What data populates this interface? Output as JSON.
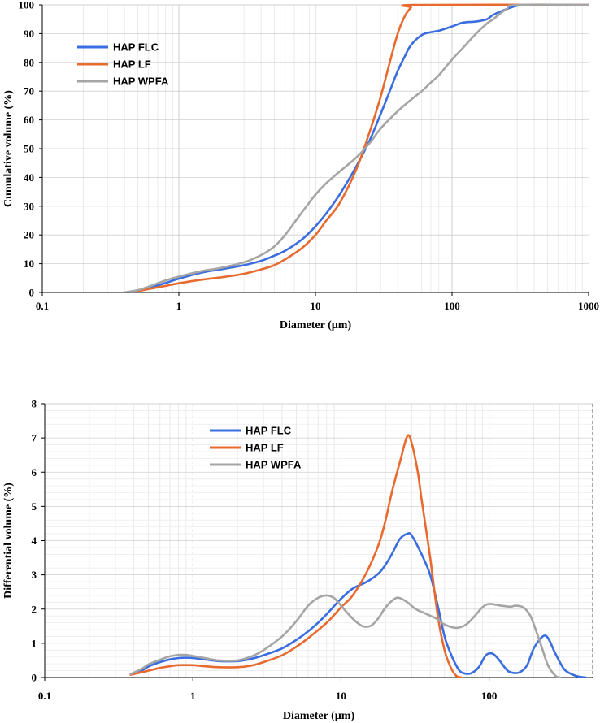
{
  "chart_data": [
    {
      "type": "line",
      "x_scale": "log",
      "xlim": [
        0.1,
        1000
      ],
      "ylim": [
        0,
        100
      ],
      "x_ticks": [
        "0.1",
        "1",
        "10",
        "100",
        "1000"
      ],
      "y_ticks": [
        "0",
        "10",
        "20",
        "30",
        "40",
        "50",
        "60",
        "70",
        "80",
        "90",
        "100"
      ],
      "xlabel": "Diameter (µm)",
      "ylabel": "Cumulative volume (%)",
      "legend_position": "top-left",
      "series": [
        {
          "name": "HAP FLC",
          "color": "#3A6EE0",
          "points": [
            [
              0.4,
              0
            ],
            [
              0.5,
              0.6
            ],
            [
              0.6,
              1.5
            ],
            [
              0.8,
              3.3
            ],
            [
              1,
              4.8
            ],
            [
              1.5,
              7
            ],
            [
              2,
              8
            ],
            [
              3,
              9.5
            ],
            [
              4,
              11
            ],
            [
              5,
              12.8
            ],
            [
              6,
              14.5
            ],
            [
              8,
              18.5
            ],
            [
              10,
              23
            ],
            [
              12,
              27.5
            ],
            [
              15,
              34
            ],
            [
              20,
              44
            ],
            [
              25,
              53
            ],
            [
              30,
              62
            ],
            [
              35,
              70
            ],
            [
              40,
              77
            ],
            [
              45,
              82
            ],
            [
              50,
              86
            ],
            [
              60,
              89.5
            ],
            [
              70,
              90.5
            ],
            [
              80,
              91
            ],
            [
              100,
              92.5
            ],
            [
              120,
              93.8
            ],
            [
              150,
              94.2
            ],
            [
              180,
              95
            ],
            [
              200,
              96.5
            ],
            [
              250,
              98.5
            ],
            [
              300,
              99.7
            ],
            [
              350,
              100
            ],
            [
              1000,
              100
            ]
          ]
        },
        {
          "name": "HAP LF",
          "color": "#E86A2E",
          "points": [
            [
              0.4,
              0
            ],
            [
              0.5,
              0.5
            ],
            [
              0.6,
              1.2
            ],
            [
              0.8,
              2.3
            ],
            [
              1,
              3.2
            ],
            [
              1.5,
              4.5
            ],
            [
              2,
              5.2
            ],
            [
              3,
              6.5
            ],
            [
              4,
              8
            ],
            [
              5,
              9.5
            ],
            [
              6,
              11.5
            ],
            [
              8,
              15.5
            ],
            [
              10,
              20
            ],
            [
              12,
              25
            ],
            [
              15,
              31
            ],
            [
              20,
              43
            ],
            [
              25,
              56
            ],
            [
              30,
              68
            ],
            [
              35,
              80
            ],
            [
              40,
              90
            ],
            [
              45,
              96
            ],
            [
              50,
              99
            ],
            [
              55,
              100
            ],
            [
              1000,
              100
            ]
          ]
        },
        {
          "name": "HAP WPFA",
          "color": "#A5A5A5",
          "points": [
            [
              0.4,
              0
            ],
            [
              0.5,
              0.8
            ],
            [
              0.6,
              2
            ],
            [
              0.8,
              4.2
            ],
            [
              1,
              5.5
            ],
            [
              1.5,
              7.5
            ],
            [
              2,
              8.5
            ],
            [
              3,
              10.5
            ],
            [
              4,
              13
            ],
            [
              5,
              16
            ],
            [
              6,
              20
            ],
            [
              8,
              28
            ],
            [
              10,
              34
            ],
            [
              12,
              38
            ],
            [
              15,
              42
            ],
            [
              20,
              47
            ],
            [
              25,
              52
            ],
            [
              30,
              57
            ],
            [
              40,
              63
            ],
            [
              50,
              67
            ],
            [
              60,
              70
            ],
            [
              70,
              73
            ],
            [
              80,
              75.5
            ],
            [
              100,
              81
            ],
            [
              120,
              85
            ],
            [
              150,
              90
            ],
            [
              180,
              93.5
            ],
            [
              200,
              95
            ],
            [
              250,
              98.5
            ],
            [
              300,
              100
            ],
            [
              1000,
              100
            ]
          ]
        }
      ]
    },
    {
      "type": "line",
      "x_scale": "log",
      "xlim": [
        0.1,
        500
      ],
      "ylim": [
        0,
        8
      ],
      "x_ticks": [
        "0.1",
        "1",
        "10",
        "100"
      ],
      "y_ticks": [
        "0",
        "1",
        "2",
        "3",
        "4",
        "5",
        "6",
        "7",
        "8"
      ],
      "xlabel": "Diameter (µm)",
      "ylabel": "Differential volume (%)",
      "legend_position": "top-center",
      "series": [
        {
          "name": "HAP FLC",
          "color": "#3A6EE0",
          "points": [
            [
              0.38,
              0.1
            ],
            [
              0.45,
              0.2
            ],
            [
              0.5,
              0.32
            ],
            [
              0.6,
              0.45
            ],
            [
              0.7,
              0.53
            ],
            [
              0.8,
              0.57
            ],
            [
              0.9,
              0.58
            ],
            [
              1,
              0.57
            ],
            [
              1.2,
              0.53
            ],
            [
              1.5,
              0.48
            ],
            [
              2,
              0.48
            ],
            [
              2.5,
              0.55
            ],
            [
              3,
              0.65
            ],
            [
              4,
              0.85
            ],
            [
              5,
              1.1
            ],
            [
              6,
              1.35
            ],
            [
              7,
              1.6
            ],
            [
              8,
              1.85
            ],
            [
              10,
              2.3
            ],
            [
              12,
              2.6
            ],
            [
              15,
              2.8
            ],
            [
              18,
              3.05
            ],
            [
              20,
              3.3
            ],
            [
              22,
              3.6
            ],
            [
              25,
              4.05
            ],
            [
              28,
              4.2
            ],
            [
              30,
              4.15
            ],
            [
              35,
              3.6
            ],
            [
              40,
              3.0
            ],
            [
              45,
              2.1
            ],
            [
              50,
              1.2
            ],
            [
              55,
              0.7
            ],
            [
              60,
              0.35
            ],
            [
              65,
              0.15
            ],
            [
              75,
              0.12
            ],
            [
              85,
              0.3
            ],
            [
              95,
              0.65
            ],
            [
              105,
              0.7
            ],
            [
              115,
              0.55
            ],
            [
              130,
              0.25
            ],
            [
              140,
              0.15
            ],
            [
              160,
              0.15
            ],
            [
              180,
              0.35
            ],
            [
              200,
              0.85
            ],
            [
              230,
              1.2
            ],
            [
              250,
              1.15
            ],
            [
              280,
              0.7
            ],
            [
              320,
              0.25
            ],
            [
              360,
              0.1
            ],
            [
              400,
              0.03
            ],
            [
              450,
              0
            ]
          ]
        },
        {
          "name": "HAP LF",
          "color": "#E86A2E",
          "points": [
            [
              0.38,
              0.08
            ],
            [
              0.5,
              0.2
            ],
            [
              0.6,
              0.28
            ],
            [
              0.7,
              0.33
            ],
            [
              0.8,
              0.36
            ],
            [
              1,
              0.36
            ],
            [
              1.2,
              0.33
            ],
            [
              1.5,
              0.3
            ],
            [
              2,
              0.3
            ],
            [
              2.5,
              0.35
            ],
            [
              3,
              0.45
            ],
            [
              4,
              0.65
            ],
            [
              5,
              0.9
            ],
            [
              6,
              1.15
            ],
            [
              8,
              1.6
            ],
            [
              10,
              2.05
            ],
            [
              12,
              2.4
            ],
            [
              15,
              3.1
            ],
            [
              18,
              3.9
            ],
            [
              20,
              4.6
            ],
            [
              22,
              5.4
            ],
            [
              25,
              6.3
            ],
            [
              28,
              7.05
            ],
            [
              30,
              6.85
            ],
            [
              33,
              6.0
            ],
            [
              35,
              5.2
            ],
            [
              40,
              3.5
            ],
            [
              45,
              1.8
            ],
            [
              50,
              0.8
            ],
            [
              55,
              0.3
            ],
            [
              60,
              0.05
            ],
            [
              65,
              0
            ]
          ]
        },
        {
          "name": "HAP WPFA",
          "color": "#A5A5A5",
          "points": [
            [
              0.38,
              0.1
            ],
            [
              0.45,
              0.25
            ],
            [
              0.5,
              0.38
            ],
            [
              0.6,
              0.52
            ],
            [
              0.7,
              0.62
            ],
            [
              0.8,
              0.66
            ],
            [
              0.9,
              0.66
            ],
            [
              1,
              0.63
            ],
            [
              1.2,
              0.57
            ],
            [
              1.5,
              0.5
            ],
            [
              2,
              0.5
            ],
            [
              2.5,
              0.62
            ],
            [
              3,
              0.8
            ],
            [
              4,
              1.2
            ],
            [
              5,
              1.65
            ],
            [
              6,
              2.1
            ],
            [
              7,
              2.33
            ],
            [
              8,
              2.4
            ],
            [
              9,
              2.32
            ],
            [
              10,
              2.1
            ],
            [
              12,
              1.72
            ],
            [
              14,
              1.5
            ],
            [
              16,
              1.52
            ],
            [
              18,
              1.75
            ],
            [
              20,
              2.05
            ],
            [
              23,
              2.3
            ],
            [
              25,
              2.32
            ],
            [
              28,
              2.2
            ],
            [
              32,
              2.0
            ],
            [
              38,
              1.85
            ],
            [
              45,
              1.7
            ],
            [
              50,
              1.55
            ],
            [
              60,
              1.45
            ],
            [
              70,
              1.55
            ],
            [
              80,
              1.8
            ],
            [
              90,
              2.05
            ],
            [
              100,
              2.15
            ],
            [
              120,
              2.1
            ],
            [
              140,
              2.07
            ],
            [
              150,
              2.1
            ],
            [
              170,
              2.05
            ],
            [
              190,
              1.8
            ],
            [
              210,
              1.3
            ],
            [
              230,
              0.8
            ],
            [
              250,
              0.35
            ],
            [
              280,
              0.05
            ],
            [
              300,
              0
            ]
          ]
        }
      ]
    }
  ]
}
